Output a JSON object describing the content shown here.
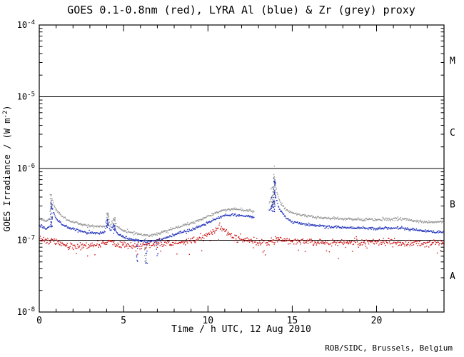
{
  "title": "GOES 0.1-0.8nm (red), LYRA Al (blue) & Zr (grey) proxy",
  "credit": "ROB/SIDC, Brussels, Belgium",
  "colors": {
    "background": "#ffffff",
    "frame": "#000000",
    "text": "#000000",
    "goes_red": "#cc1111",
    "lyra_al_blue": "#2233bb",
    "lyra_zr_grey": "#969696"
  },
  "chart_data": {
    "type": "scatter",
    "title": "GOES 0.1-0.8nm (red), LYRA Al (blue) & Zr (grey) proxy",
    "xlabel": "Time / h UTC, 12 Aug 2010",
    "ylabel": "GOES Irradiance / (W m-2)",
    "ylabel_parts": {
      "pre": "GOES Irradiance / (W m",
      "sup": "-2",
      "post": ")"
    },
    "x_range": [
      0,
      24
    ],
    "x_major_ticks": [
      0,
      5,
      10,
      15,
      20
    ],
    "x_minor_step": 1,
    "y_scale": "log",
    "y_range_exp": [
      -8,
      -4
    ],
    "y_decade_labels": [
      -8,
      -7,
      -6,
      -5,
      -4
    ],
    "hlines": [
      1e-07,
      1e-06,
      1e-05
    ],
    "class_labels": [
      {
        "label": "M",
        "between_exp": [
          -5,
          -4
        ]
      },
      {
        "label": "C",
        "between_exp": [
          -6,
          -5
        ]
      },
      {
        "label": "B",
        "between_exp": [
          -7,
          -6
        ]
      },
      {
        "label": "A",
        "between_exp": [
          -8,
          -7
        ]
      }
    ],
    "grid": false,
    "legend": "in title",
    "series": [
      {
        "name": "GOES 0.1-0.8nm",
        "color": "#cc1111",
        "noise": 0.055,
        "dropout_p": 0.03,
        "gaps": [],
        "bursts": [],
        "keypoints": [
          [
            0,
            1.05e-07
          ],
          [
            0.3,
            9.8e-08
          ],
          [
            0.6,
            9.2e-08
          ],
          [
            0.8,
            1e-07
          ],
          [
            1.2,
            9e-08
          ],
          [
            1.8,
            8.3e-08
          ],
          [
            2.5,
            8.2e-08
          ],
          [
            3.2,
            8.6e-08
          ],
          [
            3.9,
            9e-08
          ],
          [
            4.1,
            9.6e-08
          ],
          [
            4.5,
            8.8e-08
          ],
          [
            5,
            8.6e-08
          ],
          [
            5.5,
            8.3e-08
          ],
          [
            6,
            8.4e-08
          ],
          [
            6.5,
            8.6e-08
          ],
          [
            7,
            9e-08
          ],
          [
            7.5,
            9.2e-08
          ],
          [
            8,
            9.4e-08
          ],
          [
            8.5,
            9.7e-08
          ],
          [
            9,
            1e-07
          ],
          [
            9.5,
            1.05e-07
          ],
          [
            10,
            1.2e-07
          ],
          [
            10.5,
            1.45e-07
          ],
          [
            10.7,
            1.5e-07
          ],
          [
            11,
            1.35e-07
          ],
          [
            11.3,
            1.2e-07
          ],
          [
            11.6,
            1.1e-07
          ],
          [
            12,
            1.02e-07
          ],
          [
            12.5,
            9.8e-08
          ],
          [
            13,
            9.5e-08
          ],
          [
            13.5,
            9.3e-08
          ],
          [
            14,
            1e-07
          ],
          [
            14.3,
            1.02e-07
          ],
          [
            14.6,
            9.8e-08
          ],
          [
            15,
            9.6e-08
          ],
          [
            16,
            9.5e-08
          ],
          [
            17,
            9.2e-08
          ],
          [
            18,
            9.4e-08
          ],
          [
            19,
            9.2e-08
          ],
          [
            20,
            9.4e-08
          ],
          [
            21,
            9.2e-08
          ],
          [
            22,
            9e-08
          ],
          [
            23,
            9e-08
          ],
          [
            24,
            9e-08
          ]
        ]
      },
      {
        "name": "LYRA Al proxy",
        "color": "#2233bb",
        "noise": 0.022,
        "dropout_p": 0.0,
        "gaps": [
          [
            12.75,
            13.6
          ]
        ],
        "bursts": [
          [
            0.72,
            1.5e-07,
            3.3e-07,
            20
          ],
          [
            4.05,
            1.3e-07,
            2e-07,
            12
          ],
          [
            4.45,
            1.2e-07,
            1.7e-07,
            10
          ],
          [
            5.8,
            5e-08,
            9e-08,
            8
          ],
          [
            6.35,
            4.5e-08,
            9.5e-08,
            12
          ],
          [
            7.0,
            6e-08,
            9.5e-08,
            6
          ],
          [
            13.8,
            2.3e-07,
            5e-07,
            10
          ],
          [
            13.95,
            2.5e-07,
            8e-07,
            28
          ]
        ],
        "keypoints": [
          [
            0,
            1.6e-07
          ],
          [
            0.4,
            1.45e-07
          ],
          [
            0.6,
            1.6e-07
          ],
          [
            0.72,
            3e-07
          ],
          [
            0.85,
            2.4e-07
          ],
          [
            1.0,
            2e-07
          ],
          [
            1.3,
            1.7e-07
          ],
          [
            1.7,
            1.5e-07
          ],
          [
            2.2,
            1.4e-07
          ],
          [
            2.8,
            1.3e-07
          ],
          [
            3.4,
            1.25e-07
          ],
          [
            3.9,
            1.3e-07
          ],
          [
            4.05,
            1.95e-07
          ],
          [
            4.2,
            1.35e-07
          ],
          [
            4.45,
            1.65e-07
          ],
          [
            4.6,
            1.25e-07
          ],
          [
            5,
            1.12e-07
          ],
          [
            5.5,
            1.03e-07
          ],
          [
            6,
            9.8e-08
          ],
          [
            6.5,
            9.6e-08
          ],
          [
            7,
            1e-07
          ],
          [
            7.5,
            1.08e-07
          ],
          [
            8,
            1.18e-07
          ],
          [
            8.5,
            1.3e-07
          ],
          [
            9,
            1.4e-07
          ],
          [
            9.5,
            1.55e-07
          ],
          [
            10,
            1.75e-07
          ],
          [
            10.5,
            2e-07
          ],
          [
            10.8,
            2.15e-07
          ],
          [
            11.2,
            2.25e-07
          ],
          [
            11.6,
            2.25e-07
          ],
          [
            12,
            2.2e-07
          ],
          [
            12.4,
            2.15e-07
          ],
          [
            12.7,
            2.1e-07
          ],
          [
            13.65,
            2.6e-07
          ],
          [
            13.85,
            3.2e-07
          ],
          [
            13.95,
            4.8e-07
          ],
          [
            14.05,
            3.8e-07
          ],
          [
            14.2,
            2.9e-07
          ],
          [
            14.4,
            2.4e-07
          ],
          [
            14.7,
            2e-07
          ],
          [
            15,
            1.8e-07
          ],
          [
            15.5,
            1.7e-07
          ],
          [
            16,
            1.65e-07
          ],
          [
            16.5,
            1.6e-07
          ],
          [
            17,
            1.55e-07
          ],
          [
            18,
            1.5e-07
          ],
          [
            19,
            1.48e-07
          ],
          [
            20,
            1.45e-07
          ],
          [
            20.5,
            1.48e-07
          ],
          [
            21,
            1.45e-07
          ],
          [
            21.5,
            1.5e-07
          ],
          [
            22,
            1.42e-07
          ],
          [
            22.5,
            1.38e-07
          ],
          [
            23,
            1.33e-07
          ],
          [
            23.5,
            1.3e-07
          ],
          [
            24,
            1.3e-07
          ]
        ]
      },
      {
        "name": "LYRA Zr proxy",
        "color": "#969696",
        "noise": 0.022,
        "dropout_p": 0.0,
        "gaps": [
          [
            12.75,
            13.6
          ]
        ],
        "bursts": [
          [
            0.7,
            2e-07,
            4.5e-07,
            20
          ],
          [
            4.05,
            1.6e-07,
            2.4e-07,
            12
          ],
          [
            4.45,
            1.5e-07,
            2.1e-07,
            10
          ],
          [
            6.3,
            5e-08,
            1.1e-07,
            10
          ],
          [
            13.8,
            2.8e-07,
            6e-07,
            12
          ],
          [
            13.95,
            3e-07,
            1.15e-06,
            30
          ]
        ],
        "keypoints": [
          [
            0,
            2e-07
          ],
          [
            0.4,
            1.85e-07
          ],
          [
            0.6,
            2e-07
          ],
          [
            0.7,
            4.2e-07
          ],
          [
            0.85,
            3.2e-07
          ],
          [
            1.0,
            2.6e-07
          ],
          [
            1.3,
            2.2e-07
          ],
          [
            1.7,
            1.9e-07
          ],
          [
            2.2,
            1.75e-07
          ],
          [
            2.8,
            1.6e-07
          ],
          [
            3.4,
            1.55e-07
          ],
          [
            3.9,
            1.6e-07
          ],
          [
            4.05,
            2.35e-07
          ],
          [
            4.2,
            1.65e-07
          ],
          [
            4.45,
            2e-07
          ],
          [
            4.6,
            1.55e-07
          ],
          [
            5,
            1.38e-07
          ],
          [
            5.5,
            1.27e-07
          ],
          [
            6,
            1.2e-07
          ],
          [
            6.5,
            1.18e-07
          ],
          [
            7,
            1.22e-07
          ],
          [
            7.5,
            1.32e-07
          ],
          [
            8,
            1.45e-07
          ],
          [
            8.5,
            1.6e-07
          ],
          [
            9,
            1.72e-07
          ],
          [
            9.5,
            1.9e-07
          ],
          [
            10,
            2.15e-07
          ],
          [
            10.5,
            2.45e-07
          ],
          [
            10.8,
            2.6e-07
          ],
          [
            11.2,
            2.7e-07
          ],
          [
            11.6,
            2.7e-07
          ],
          [
            12,
            2.65e-07
          ],
          [
            12.4,
            2.6e-07
          ],
          [
            12.7,
            2.55e-07
          ],
          [
            13.65,
            3.3e-07
          ],
          [
            13.85,
            4.2e-07
          ],
          [
            13.95,
            7e-07
          ],
          [
            14.05,
            5.2e-07
          ],
          [
            14.2,
            3.8e-07
          ],
          [
            14.4,
            3.1e-07
          ],
          [
            14.7,
            2.6e-07
          ],
          [
            15,
            2.4e-07
          ],
          [
            15.5,
            2.25e-07
          ],
          [
            16,
            2.15e-07
          ],
          [
            16.5,
            2.1e-07
          ],
          [
            17,
            2.05e-07
          ],
          [
            18,
            2e-07
          ],
          [
            19,
            1.95e-07
          ],
          [
            20,
            1.92e-07
          ],
          [
            20.5,
            1.98e-07
          ],
          [
            21,
            1.95e-07
          ],
          [
            21.5,
            2e-07
          ],
          [
            22,
            1.9e-07
          ],
          [
            22.5,
            1.85e-07
          ],
          [
            23,
            1.8e-07
          ],
          [
            24,
            1.8e-07
          ]
        ]
      }
    ]
  }
}
